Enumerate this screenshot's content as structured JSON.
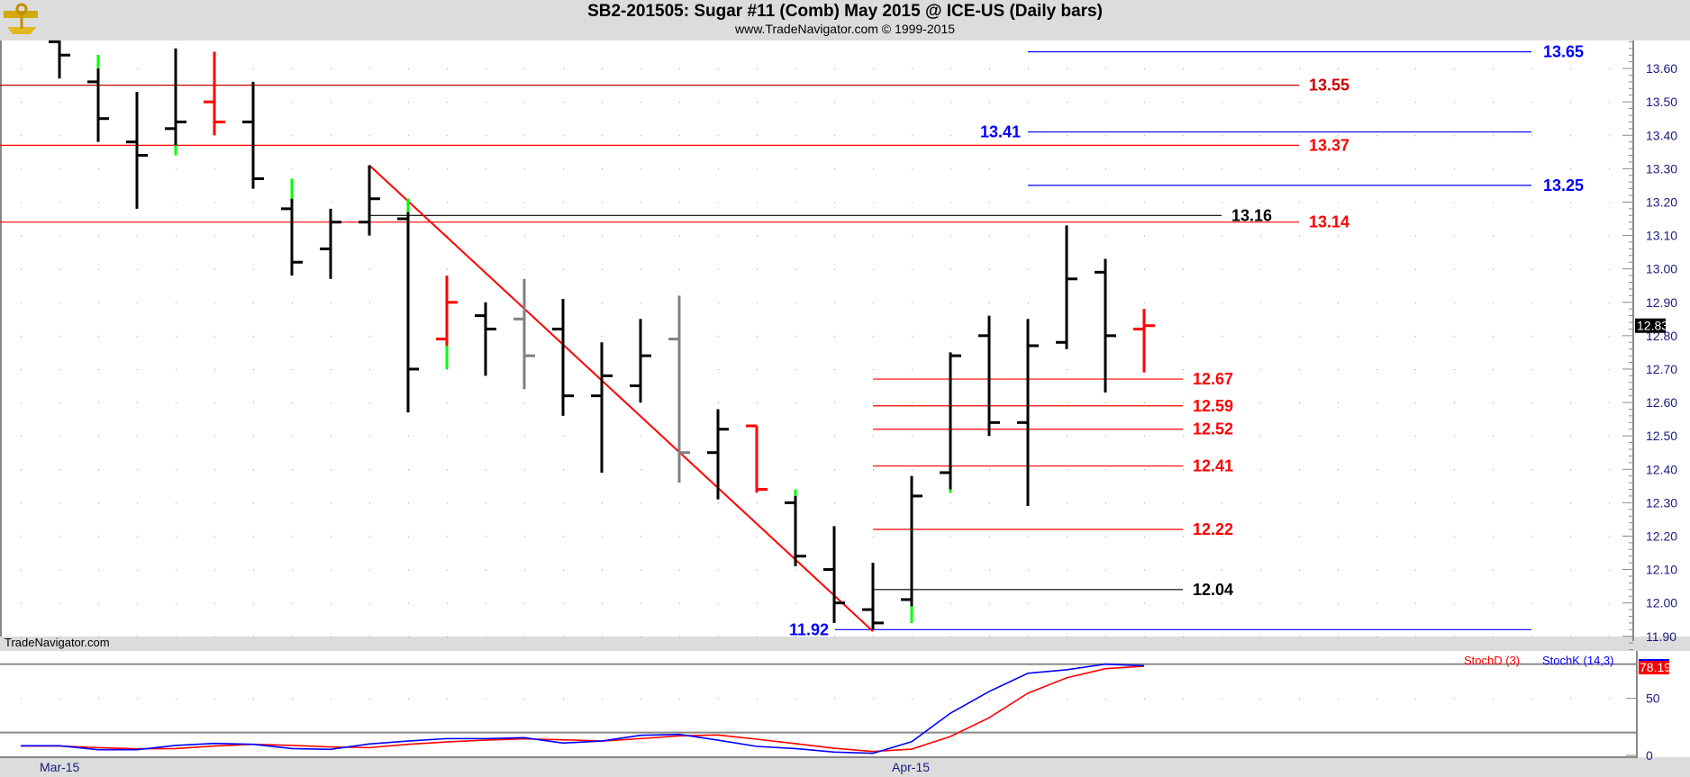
{
  "header": {
    "title": "SB2-201505:  Sugar #11 (Comb) May 2015 @ ICE-US  (Daily bars)",
    "subtitle": "www.TradeNavigator.com © 1999-2015"
  },
  "watermark": "TradeNavigator.com",
  "logo": "sextant-logo-icon",
  "chart_data": [
    {
      "type": "ohlc",
      "title": "SB2-201505:  Sugar #11 (Comb) May 2015 @ ICE-US  (Daily bars)",
      "ylim": [
        11.85,
        13.69
      ],
      "y_ticks": [
        11.9,
        12.0,
        12.1,
        12.2,
        12.3,
        12.4,
        12.5,
        12.6,
        12.7,
        12.8,
        12.9,
        13.0,
        13.1,
        13.2,
        13.3,
        13.4,
        13.5,
        13.6
      ],
      "x_tick_labels": [
        {
          "bar": 0,
          "label": "Mar-15"
        },
        {
          "bar": 22,
          "label": "Apr-15"
        }
      ],
      "grid": "dotted",
      "last_price": "12.83",
      "bars": [
        {
          "o": 13.68,
          "h": 13.7,
          "l": 13.57,
          "c": 13.64,
          "color": "#000000"
        },
        {
          "o": 13.56,
          "h": 13.64,
          "l": 13.38,
          "c": 13.45,
          "color": "#000000",
          "green": [
            13.64,
            13.6
          ]
        },
        {
          "o": 13.38,
          "h": 13.53,
          "l": 13.18,
          "c": 13.34,
          "color": "#000000"
        },
        {
          "o": 13.42,
          "h": 13.66,
          "l": 13.34,
          "c": 13.44,
          "color": "#000000",
          "green": [
            13.37,
            13.34
          ]
        },
        {
          "o": 13.5,
          "h": 13.65,
          "l": 13.4,
          "c": 13.44,
          "color": "#ff0000"
        },
        {
          "o": 13.44,
          "h": 13.56,
          "l": 13.24,
          "c": 13.27,
          "color": "#000000"
        },
        {
          "o": 13.18,
          "h": 13.27,
          "l": 12.98,
          "c": 13.02,
          "color": "#000000",
          "green": [
            13.27,
            13.21
          ]
        },
        {
          "o": 13.06,
          "h": 13.18,
          "l": 12.97,
          "c": 13.14,
          "color": "#000000"
        },
        {
          "o": 13.14,
          "h": 13.31,
          "l": 13.1,
          "c": 13.21,
          "color": "#000000"
        },
        {
          "o": 13.15,
          "h": 13.21,
          "l": 12.57,
          "c": 12.7,
          "color": "#000000",
          "green": [
            13.21,
            13.17
          ]
        },
        {
          "o": 12.79,
          "h": 12.98,
          "l": 12.7,
          "c": 12.9,
          "color": "#ff0000",
          "green": [
            12.77,
            12.7
          ]
        },
        {
          "o": 12.86,
          "h": 12.9,
          "l": 12.68,
          "c": 12.82,
          "color": "#000000"
        },
        {
          "o": 12.85,
          "h": 12.97,
          "l": 12.64,
          "c": 12.74,
          "color": "#808080"
        },
        {
          "o": 12.82,
          "h": 12.91,
          "l": 12.56,
          "c": 12.62,
          "color": "#000000"
        },
        {
          "o": 12.62,
          "h": 12.78,
          "l": 12.39,
          "c": 12.68,
          "color": "#000000"
        },
        {
          "o": 12.65,
          "h": 12.85,
          "l": 12.6,
          "c": 12.74,
          "color": "#000000"
        },
        {
          "o": 12.79,
          "h": 12.92,
          "l": 12.36,
          "c": 12.45,
          "color": "#808080"
        },
        {
          "o": 12.45,
          "h": 12.58,
          "l": 12.31,
          "c": 12.52,
          "color": "#000000"
        },
        {
          "o": 12.53,
          "h": 12.53,
          "l": 12.33,
          "c": 12.34,
          "color": "#ff0000"
        },
        {
          "o": 12.3,
          "h": 12.34,
          "l": 12.11,
          "c": 12.14,
          "color": "#000000",
          "green": [
            12.34,
            12.32
          ]
        },
        {
          "o": 12.1,
          "h": 12.23,
          "l": 11.94,
          "c": 12.0,
          "color": "#000000"
        },
        {
          "o": 11.98,
          "h": 12.12,
          "l": 11.92,
          "c": 11.94,
          "color": "#000000"
        },
        {
          "o": 12.01,
          "h": 12.38,
          "l": 11.94,
          "c": 12.32,
          "color": "#000000",
          "green": [
            11.99,
            11.94
          ]
        },
        {
          "o": 12.39,
          "h": 12.75,
          "l": 12.33,
          "c": 12.74,
          "color": "#000000",
          "green": [
            12.34,
            12.33
          ]
        },
        {
          "o": 12.8,
          "h": 12.86,
          "l": 12.5,
          "c": 12.54,
          "color": "#000000"
        },
        {
          "o": 12.54,
          "h": 12.85,
          "l": 12.29,
          "c": 12.77,
          "color": "#000000"
        },
        {
          "o": 12.78,
          "h": 13.13,
          "l": 12.76,
          "c": 12.97,
          "color": "#000000"
        },
        {
          "o": 12.99,
          "h": 13.03,
          "l": 12.63,
          "c": 12.8,
          "color": "#000000"
        },
        {
          "o": 12.82,
          "h": 12.88,
          "l": 12.69,
          "c": 12.83,
          "color": "#ff0000"
        }
      ],
      "levels": [
        {
          "value": 13.65,
          "label": "13.65",
          "color": "#0000ff",
          "group": "blue-right"
        },
        {
          "value": 13.41,
          "label": "13.41",
          "color": "#0000ff",
          "group": "blue-left-label"
        },
        {
          "value": 13.25,
          "label": "13.25",
          "color": "#0000ff",
          "group": "blue-right"
        },
        {
          "value": 13.55,
          "label": "13.55",
          "color": "#cc0000",
          "group": "red-upper"
        },
        {
          "value": 13.37,
          "label": "13.37",
          "color": "#ff0000",
          "group": "red-upper"
        },
        {
          "value": 13.14,
          "label": "13.14",
          "color": "#ff0000",
          "group": "red-upper"
        },
        {
          "value": 13.16,
          "label": "13.16",
          "color": "#000000",
          "group": "black-upper"
        },
        {
          "value": 12.67,
          "label": "12.67",
          "color": "#ff0000",
          "group": "lower"
        },
        {
          "value": 12.59,
          "label": "12.59",
          "color": "#ff0000",
          "group": "lower"
        },
        {
          "value": 12.52,
          "label": "12.52",
          "color": "#ff0000",
          "group": "lower"
        },
        {
          "value": 12.41,
          "label": "12.41",
          "color": "#ff0000",
          "group": "lower"
        },
        {
          "value": 12.22,
          "label": "12.22",
          "color": "#ff0000",
          "group": "lower"
        },
        {
          "value": 12.04,
          "label": "12.04",
          "color": "#000000",
          "group": "lower"
        },
        {
          "value": 11.92,
          "label": "11.92",
          "color": "#0000ff",
          "group": "blue-low"
        }
      ],
      "trendline": {
        "from_bar": 8,
        "from_price": 13.31,
        "to_bar": 21,
        "to_price": 11.915,
        "color": "#ff0000"
      }
    },
    {
      "type": "line",
      "ylim": [
        0,
        100
      ],
      "y_ticks": [
        0,
        50
      ],
      "reference_lines": [
        20,
        80
      ],
      "last_value": "78.19",
      "series": [
        {
          "name": "StochD (3)",
          "color": "#ff0000",
          "values": [
            8.2,
            6.8,
            5.8,
            6,
            8.2,
            9.7,
            8.7,
            7.4,
            6.8,
            9.7,
            11.8,
            13.4,
            14.5,
            13.7,
            12.6,
            14.7,
            17.1,
            17.9,
            14.2,
            10.3,
            6.3,
            3.4,
            5.5,
            16.6,
            33,
            54.5,
            68,
            76,
            78.19
          ]
        },
        {
          "name": "StochK (14,3)",
          "color": "#0000ff",
          "values": [
            8.4,
            5,
            5,
            8.7,
            10.5,
            9.7,
            6,
            5.3,
            10,
            12.6,
            14.7,
            14.7,
            15.5,
            10.8,
            12.6,
            17.6,
            18.4,
            13.4,
            7.9,
            6,
            2.9,
            1.8,
            12,
            37,
            56,
            72,
            75,
            80,
            78.6
          ]
        }
      ]
    }
  ]
}
